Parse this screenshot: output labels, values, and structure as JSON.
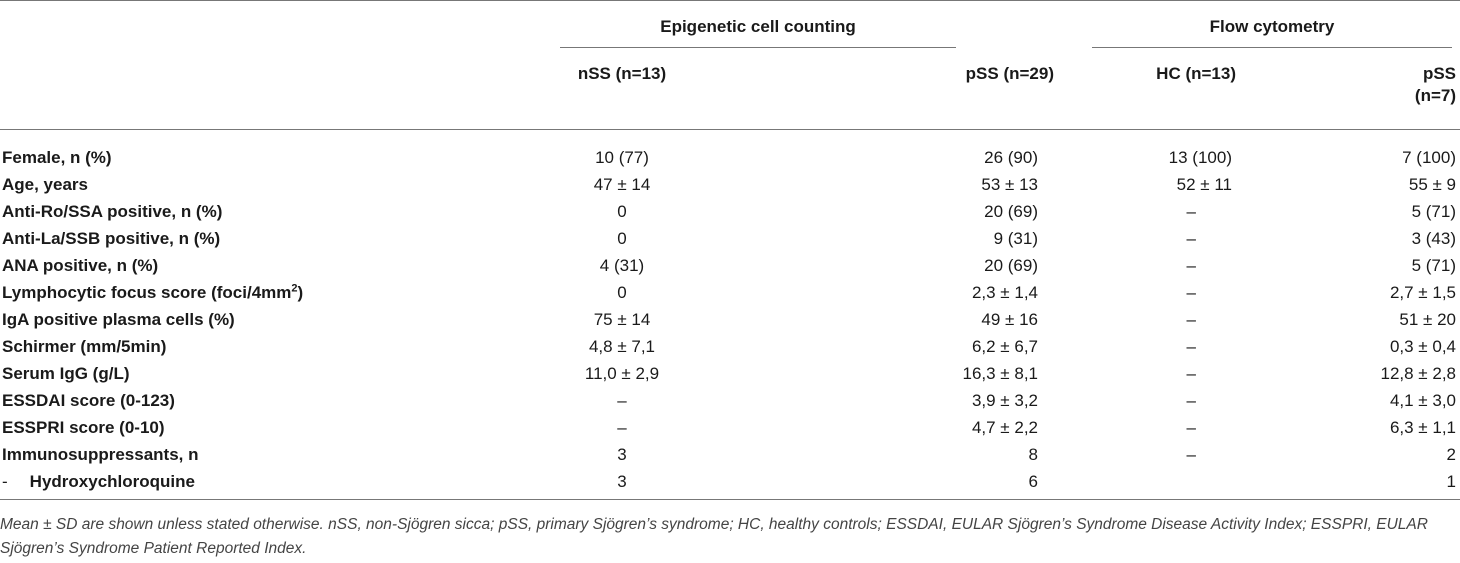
{
  "headers": {
    "group1": "Epigenetic cell counting",
    "group2": "Flow cytometry",
    "cols": [
      "nSS (n=13)",
      "pSS (n=29)",
      "HC (n=13)",
      "pSS",
      "(n=7)"
    ]
  },
  "rows": [
    {
      "label": "Female, n (%)",
      "v": [
        "10 (77)",
        "26 (90)",
        "13 (100)",
        "7 (100)"
      ]
    },
    {
      "label": "Age, years",
      "v": [
        "47 ± 14",
        "53 ± 13",
        "52 ± 11",
        "55 ± 9"
      ]
    },
    {
      "label": "Anti-Ro/SSA positive, n (%)",
      "v": [
        "0",
        "20 (69)",
        "–",
        "5 (71)"
      ]
    },
    {
      "label": "Anti-La/SSB positive, n (%)",
      "v": [
        "0",
        "9 (31)",
        "–",
        "3 (43)"
      ]
    },
    {
      "label": "ANA positive, n (%)",
      "v": [
        "4 (31)",
        "20 (69)",
        "–",
        "5 (71)"
      ]
    },
    {
      "label": "Lymphocytic focus score (foci/4mm",
      "sup": "2",
      "label_end": ")",
      "v": [
        "0",
        "2,3 ± 1,4",
        "–",
        "2,7 ± 1,5"
      ]
    },
    {
      "label": "IgA positive plasma cells (%)",
      "v": [
        "75 ± 14",
        "49 ± 16",
        "–",
        "51 ± 20"
      ]
    },
    {
      "label": "Schirmer (mm/5min)",
      "v": [
        "4,8 ± 7,1",
        "6,2 ± 6,7",
        "–",
        "0,3 ± 0,4"
      ]
    },
    {
      "label": "Serum IgG (g/L)",
      "v": [
        "11,0 ± 2,9",
        "16,3 ± 8,1",
        "–",
        "12,8 ± 2,8"
      ]
    },
    {
      "label": "ESSDAI score (0-123)",
      "v": [
        "–",
        "3,9 ± 3,2",
        "–",
        "4,1 ± 3,0"
      ]
    },
    {
      "label": "ESSPRI score (0-10)",
      "v": [
        "–",
        "4,7 ± 2,2",
        "–",
        "6,3 ± 1,1"
      ]
    },
    {
      "label": "Immunosuppressants, n",
      "v": [
        "3",
        "8",
        "–",
        "2"
      ]
    },
    {
      "prefix": "-",
      "label": "Hydroxychloroquine",
      "v": [
        "3",
        "6",
        "",
        "1"
      ]
    }
  ],
  "footnote": "Mean ± SD are shown unless stated otherwise. nSS, non-Sjögren sicca; pSS, primary Sjögren’s syndrome; HC, healthy controls; ESSDAI, EULAR Sjögren’s Syndrome Disease Activity Index; ESSPRI, EULAR Sjögren’s Syndrome Patient Reported Index."
}
